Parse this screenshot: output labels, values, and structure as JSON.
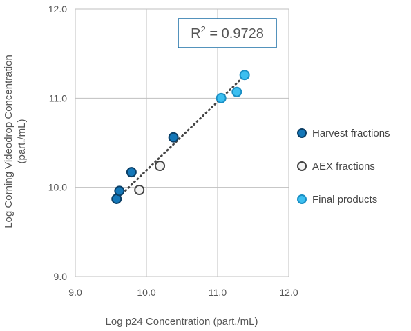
{
  "chart_data": {
    "type": "scatter",
    "xlabel": "Log p24 Concentration (part./mL)",
    "ylabel_lines": [
      "Log Corning Videodrop Concentration",
      "(part./mL)"
    ],
    "xlim": [
      9.0,
      12.0
    ],
    "ylim": [
      9.0,
      12.0
    ],
    "xticks": [
      "9.0",
      "10.0",
      "11.0",
      "12.0"
    ],
    "yticks": [
      "9.0",
      "10.0",
      "11.0",
      "12.0"
    ],
    "grid": true,
    "legend_position": "right",
    "annotation": {
      "prefix": "R",
      "sup": "2",
      "suffix": " = 0.9728"
    },
    "trendline": {
      "style": "dotted",
      "color": "#444444",
      "x_start": 9.58,
      "x_end": 11.4,
      "slope": 0.77,
      "intercept": 2.49
    },
    "series": [
      {
        "name": "Harvest fractions",
        "color": "#0a5a8c",
        "fill": "#1477b8",
        "stroke": "#0b3f66",
        "points": [
          {
            "x": 9.58,
            "y": 9.87
          },
          {
            "x": 9.62,
            "y": 9.96
          },
          {
            "x": 9.79,
            "y": 10.17
          },
          {
            "x": 10.38,
            "y": 10.56
          }
        ]
      },
      {
        "name": "AEX fractions",
        "color": "#444444",
        "fill": "#f2f2f2",
        "stroke": "#444444",
        "points": [
          {
            "x": 9.9,
            "y": 9.97
          },
          {
            "x": 10.19,
            "y": 10.24
          }
        ]
      },
      {
        "name": "Final products",
        "color": "#3cbff0",
        "fill": "#3cbff0",
        "stroke": "#1a8fc4",
        "points": [
          {
            "x": 11.05,
            "y": 11.0
          },
          {
            "x": 11.27,
            "y": 11.07
          },
          {
            "x": 11.38,
            "y": 11.26
          }
        ]
      }
    ]
  }
}
